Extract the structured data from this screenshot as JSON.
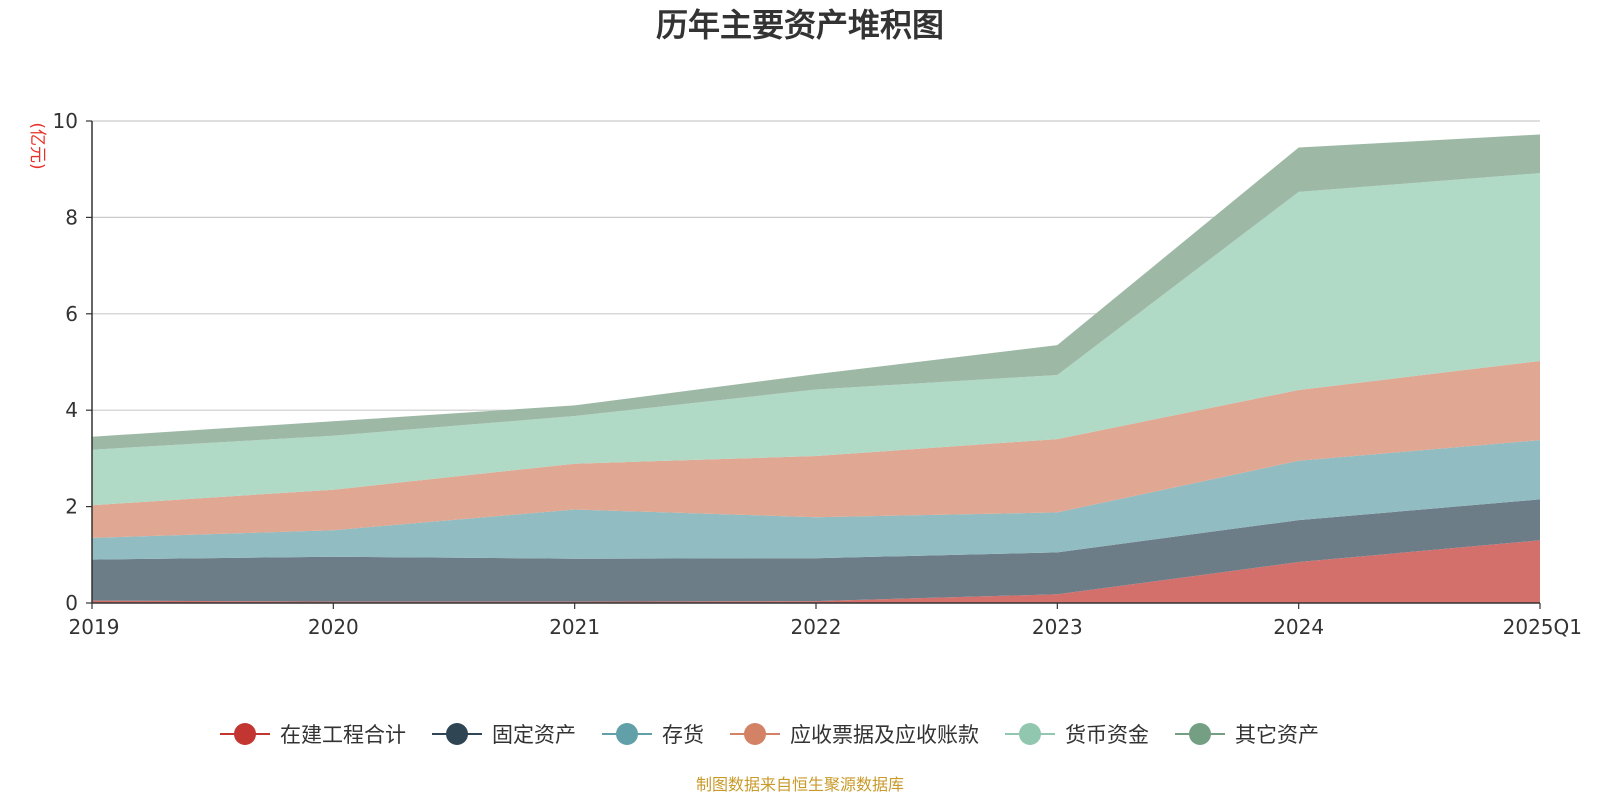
{
  "chart_data": {
    "type": "area",
    "stacked": true,
    "title": "历年主要资产堆积图",
    "unit_label": "(亿元)",
    "categories": [
      "2019",
      "2020",
      "2021",
      "2022",
      "2023",
      "2024",
      "2025Q1"
    ],
    "ylim": [
      0,
      10
    ],
    "yticks": [
      0,
      2,
      4,
      6,
      8,
      10
    ],
    "grid": true,
    "legend_position": "bottom",
    "series": [
      {
        "name": "在建工程合计",
        "color": "#c23531",
        "fill": "#d4706c",
        "values": [
          0.05,
          0.03,
          0.03,
          0.04,
          0.18,
          0.85,
          1.3
        ]
      },
      {
        "name": "固定资产",
        "color": "#2f4554",
        "fill": "#6d7d88",
        "values": [
          0.85,
          0.93,
          0.89,
          0.89,
          0.87,
          0.87,
          0.85
        ]
      },
      {
        "name": "存货",
        "color": "#61a0a8",
        "fill": "#91bcc2",
        "values": [
          0.45,
          0.55,
          1.02,
          0.85,
          0.83,
          1.23,
          1.23
        ]
      },
      {
        "name": "应收票据及应收账款",
        "color": "#d48265",
        "fill": "#e0a792",
        "values": [
          0.68,
          0.84,
          0.95,
          1.27,
          1.52,
          1.47,
          1.64
        ]
      },
      {
        "name": "货币资金",
        "color": "#91c7ae",
        "fill": "#b0d9c6",
        "values": [
          1.15,
          1.12,
          0.99,
          1.38,
          1.33,
          4.11,
          3.9
        ]
      },
      {
        "name": "其它资产",
        "color": "#749f83",
        "fill": "#9eb8a6",
        "values": [
          0.27,
          0.3,
          0.22,
          0.32,
          0.62,
          0.92,
          0.8
        ]
      }
    ],
    "source": "制图数据来自恒生聚源数据库"
  }
}
